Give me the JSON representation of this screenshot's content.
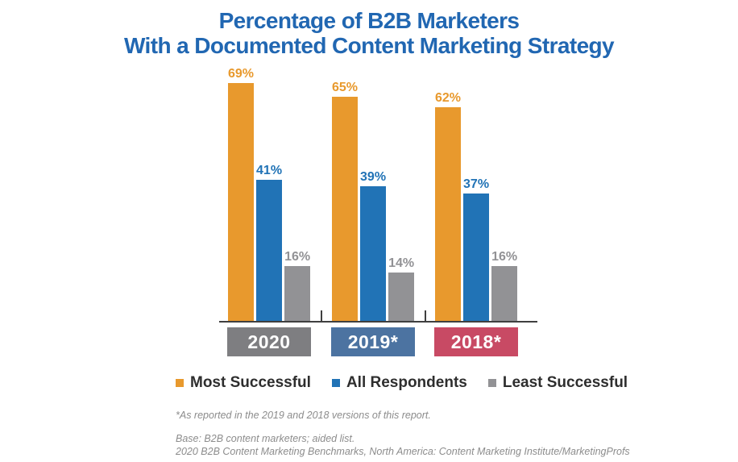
{
  "title": {
    "line1": "Percentage of B2B Marketers",
    "line2": "With a Documented Content Marketing Strategy",
    "color": "#2167B2"
  },
  "chart_data": {
    "type": "bar",
    "title": "Percentage of B2B Marketers With a Documented Content Marketing Strategy",
    "categories": [
      "2020",
      "2019*",
      "2018*"
    ],
    "category_box_colors": [
      "#7E7E81",
      "#4C73A1",
      "#C84A64"
    ],
    "series": [
      {
        "name": "Most Successful",
        "color": "#E8992D",
        "values": [
          69,
          65,
          62
        ]
      },
      {
        "name": "All Respondents",
        "color": "#2173B6",
        "values": [
          41,
          39,
          37
        ]
      },
      {
        "name": "Least Successful",
        "color": "#929295",
        "values": [
          16,
          14,
          16
        ]
      }
    ],
    "value_suffix": "%",
    "ylim": [
      0,
      74
    ],
    "grid": false,
    "legend_position": "bottom",
    "axis_color": "#3F3F3F"
  },
  "footnotes": {
    "asterisk_note": "*As reported in the 2019 and 2018 versions of this report.",
    "base_note": "Base: B2B content marketers; aided list.",
    "source_note": "2020 B2B Content Marketing Benchmarks, North America: Content Marketing Institute/MarketingProfs"
  }
}
